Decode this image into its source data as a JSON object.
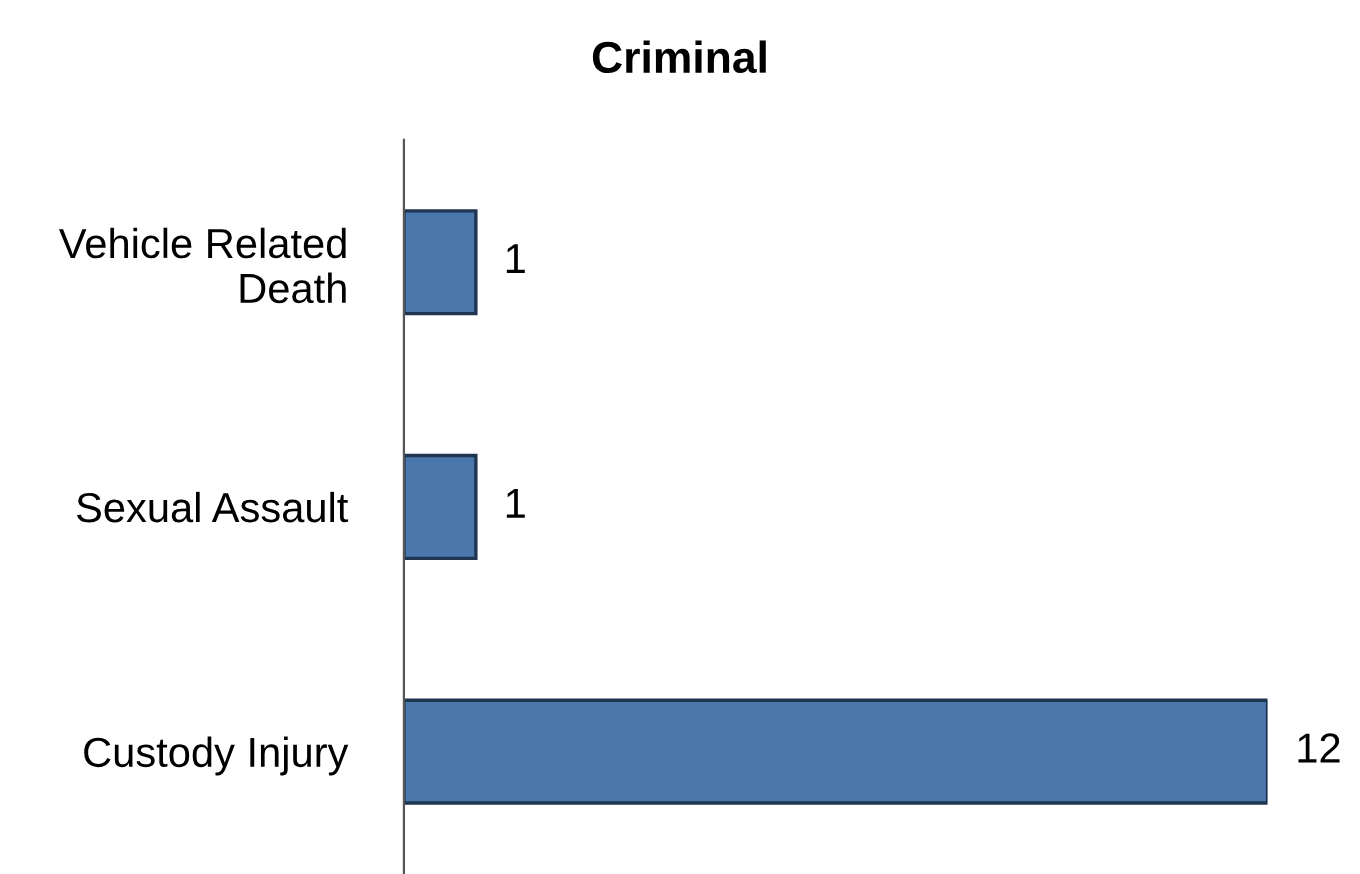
{
  "chart_data": {
    "type": "bar",
    "title": "Criminal",
    "orientation": "horizontal",
    "categories": [
      "Vehicle Related\nDeath",
      "Sexual Assault",
      "Custody Injury"
    ],
    "values": [
      1,
      1,
      12
    ],
    "color": "#4a78ac",
    "data_labels": true,
    "grid": false,
    "legend": false
  }
}
